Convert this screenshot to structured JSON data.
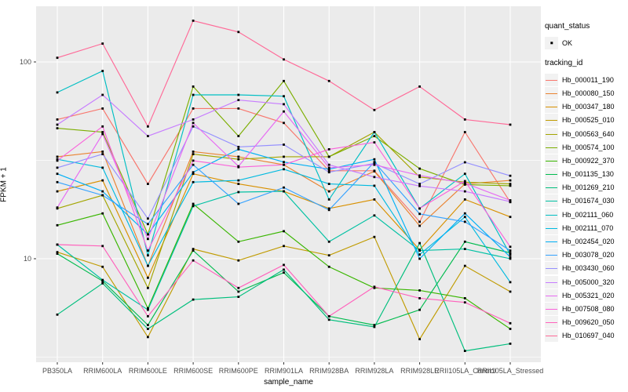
{
  "legend": {
    "quant_status": {
      "title": "quant_status",
      "items": [
        {
          "label": "OK",
          "marker": "black-point"
        }
      ]
    },
    "tracking_id": {
      "title": "tracking_id"
    }
  },
  "chart_data": {
    "type": "line",
    "title": "",
    "xlabel": "sample_name",
    "ylabel": "FPKM + 1",
    "y_scale": "log10",
    "ylim": [
      3,
      190
    ],
    "y_tick_labels": [
      {
        "label": "100",
        "value": 100
      },
      {
        "label": "10",
        "value": 10
      }
    ],
    "y_major_gridlines": [
      100,
      10
    ],
    "y_minor_gridlines": [
      31.6,
      3.16
    ],
    "grid": "on",
    "legend_position": "right",
    "panel_bg": "#ebebeb",
    "gridline_color": "#ffffff",
    "legend_key_bg": "#f2f2f2",
    "point_color": "#000000",
    "point_shape": "square",
    "tick_text_color": "#4d4d4d",
    "categories": [
      "PB350LA",
      "RRIM600LA",
      "RRIM600LE",
      "RRIM600SE",
      "RRIM600PE",
      "RRIM901LA",
      "RRIM928BA",
      "RRIM928LA",
      "RRIM928LE",
      "RRII105LA_Control",
      "RRII105LA_Stressed"
    ],
    "series": [
      {
        "name": "Hb_000011_190",
        "color": "#F8766D",
        "values": [
          51,
          58,
          24,
          58,
          58,
          49,
          28,
          28,
          15.4,
          44,
          19.4
        ]
      },
      {
        "name": "Hb_000080_150",
        "color": "#EA8331",
        "values": [
          33,
          35,
          9.2,
          35,
          33,
          30,
          22,
          27.8,
          14.7,
          24,
          25
        ]
      },
      {
        "name": "Hb_000347_180",
        "color": "#D89000",
        "values": [
          22,
          25,
          8.0,
          27,
          24,
          22,
          18,
          20,
          11.1,
          20,
          16.3
        ]
      },
      {
        "name": "Hb_000525_010",
        "color": "#C09B00",
        "values": [
          10.8,
          9.1,
          4.0,
          11.2,
          9.8,
          11.6,
          10.4,
          12.9,
          3.9,
          9.2,
          6.8
        ]
      },
      {
        "name": "Hb_000563_640",
        "color": "#A3A500",
        "values": [
          18,
          21,
          7.1,
          34,
          32,
          33,
          33,
          44,
          26,
          24.5,
          24
        ]
      },
      {
        "name": "Hb_000574_100",
        "color": "#7CAE00",
        "values": [
          46,
          44,
          13.3,
          75,
          42,
          80,
          33,
          42,
          28.7,
          23.8,
          23.5
        ]
      },
      {
        "name": "Hb_000922_370",
        "color": "#39B600",
        "values": [
          14.8,
          17,
          5.6,
          19,
          12.2,
          13.8,
          9.1,
          7.1,
          6.9,
          6.3,
          4.4
        ]
      },
      {
        "name": "Hb_001135_130",
        "color": "#00BB4E",
        "values": [
          10.6,
          7.7,
          4.6,
          11,
          6.8,
          8.5,
          5.1,
          4.6,
          5.5,
          12.2,
          10.7
        ]
      },
      {
        "name": "Hb_001269_210",
        "color": "#00BF7D",
        "values": [
          5.2,
          7.5,
          4.4,
          6.2,
          6.4,
          8.8,
          4.9,
          4.5,
          12.0,
          3.4,
          3.7
        ]
      },
      {
        "name": "Hb_001674_030",
        "color": "#00C1A3",
        "values": [
          11.8,
          7.8,
          5.5,
          18.5,
          21.8,
          22,
          12.2,
          16.6,
          11,
          11.2,
          10.0
        ]
      },
      {
        "name": "Hb_002111_060",
        "color": "#00BFC4",
        "values": [
          70,
          90,
          10.4,
          68,
          68,
          67,
          20,
          44,
          18,
          27,
          10.5
        ]
      },
      {
        "name": "Hb_002111_070",
        "color": "#00BAE0",
        "values": [
          32,
          29,
          9.2,
          24.5,
          25,
          28.5,
          24,
          23.5,
          10.5,
          16.3,
          7.6
        ]
      },
      {
        "name": "Hb_002454_020",
        "color": "#00B0F6",
        "values": [
          27,
          22,
          13.3,
          27.5,
          36,
          31,
          28.5,
          32,
          10.0,
          17,
          10.2
        ]
      },
      {
        "name": "Hb_003078_020",
        "color": "#35A2FF",
        "values": [
          24.5,
          21,
          15.0,
          30,
          19,
          23,
          17.7,
          31,
          16.9,
          15.4,
          11.0
        ]
      },
      {
        "name": "Hb_003430_060",
        "color": "#9590FF",
        "values": [
          29,
          34,
          16,
          47,
          37,
          38,
          27.5,
          30.5,
          24,
          30.9,
          26.4
        ]
      },
      {
        "name": "Hb_005000_320",
        "color": "#C77CFF",
        "values": [
          48,
          68,
          42,
          51,
          64,
          61,
          30,
          26,
          23.4,
          22,
          19.5
        ]
      },
      {
        "name": "Hb_005321_020",
        "color": "#E76BF3",
        "values": [
          18.2,
          43,
          12.6,
          49,
          29.5,
          56,
          29,
          30,
          26.5,
          24.2,
          19.8
        ]
      },
      {
        "name": "Hb_007508_080",
        "color": "#FA62DB",
        "values": [
          31.5,
          47,
          11,
          31.5,
          29.2,
          30,
          36,
          39,
          18,
          24.8,
          11.5
        ]
      },
      {
        "name": "Hb_009620_050",
        "color": "#FF62BC",
        "values": [
          11.8,
          11.6,
          5.1,
          9.8,
          7.1,
          9.3,
          5.1,
          7.2,
          6.3,
          6.0,
          4.7
        ]
      },
      {
        "name": "Hb_010697_040",
        "color": "#FF6A98",
        "values": [
          105,
          124,
          47,
          162,
          142,
          103,
          80,
          57,
          75,
          51,
          48
        ]
      }
    ]
  }
}
